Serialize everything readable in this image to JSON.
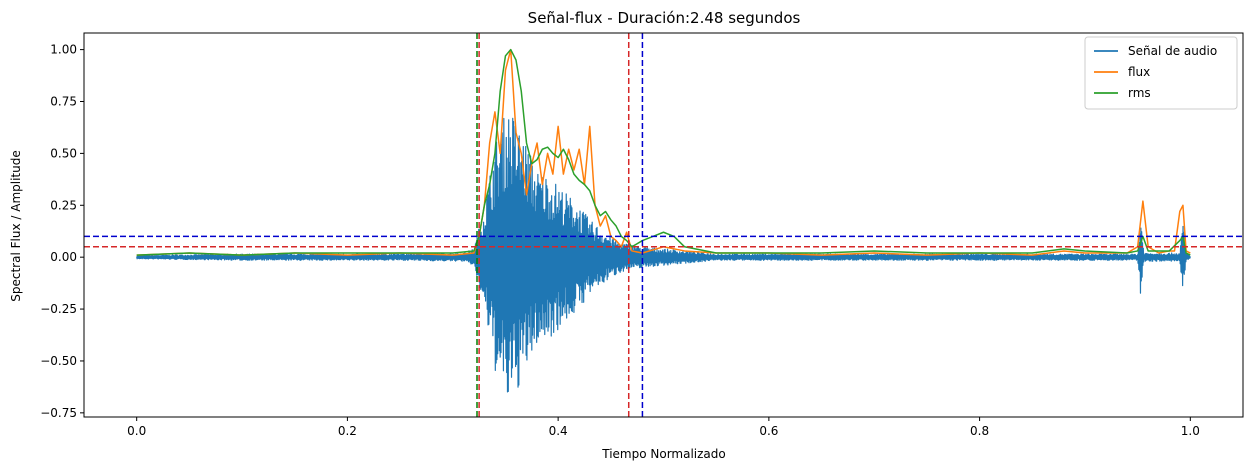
{
  "chart_data": {
    "type": "line",
    "title": "Señal-flux - Duración:2.48 segundos",
    "xlabel": "Tiempo Normalizado",
    "ylabel": "Spectral Flux / Amplitude",
    "xlim": [
      -0.05,
      1.05
    ],
    "ylim": [
      -0.77,
      1.08
    ],
    "xticks": [
      0.0,
      0.2,
      0.4,
      0.6,
      0.8,
      1.0
    ],
    "xtick_labels": [
      "0.0",
      "0.2",
      "0.4",
      "0.6",
      "0.8",
      "1.0"
    ],
    "yticks": [
      -0.75,
      -0.5,
      -0.25,
      0.0,
      0.25,
      0.5,
      0.75,
      1.0
    ],
    "ytick_labels": [
      "−0.75",
      "−0.50",
      "−0.25",
      "0.00",
      "0.25",
      "0.50",
      "0.75",
      "1.00"
    ],
    "grid": false,
    "legend_position": "top-right",
    "series": [
      {
        "name": "Señal de audio",
        "color": "#1f77b4",
        "kind": "oscillating_envelope",
        "envelope": [
          [
            0.0,
            0.008
          ],
          [
            0.1,
            0.015
          ],
          [
            0.25,
            0.015
          ],
          [
            0.31,
            0.02
          ],
          [
            0.32,
            0.04
          ],
          [
            0.33,
            0.25
          ],
          [
            0.34,
            0.55
          ],
          [
            0.345,
            0.62
          ],
          [
            0.35,
            0.7
          ],
          [
            0.355,
            0.72
          ],
          [
            0.36,
            0.66
          ],
          [
            0.37,
            0.55
          ],
          [
            0.38,
            0.42
          ],
          [
            0.39,
            0.4
          ],
          [
            0.4,
            0.35
          ],
          [
            0.41,
            0.3
          ],
          [
            0.42,
            0.25
          ],
          [
            0.43,
            0.18
          ],
          [
            0.44,
            0.14
          ],
          [
            0.45,
            0.1
          ],
          [
            0.46,
            0.07
          ],
          [
            0.47,
            0.06
          ],
          [
            0.48,
            0.05
          ],
          [
            0.5,
            0.04
          ],
          [
            0.52,
            0.03
          ],
          [
            0.55,
            0.015
          ],
          [
            0.95,
            0.015
          ],
          [
            0.953,
            0.2
          ],
          [
            0.956,
            0.02
          ],
          [
            0.99,
            0.02
          ],
          [
            0.993,
            0.18
          ],
          [
            0.996,
            0.02
          ],
          [
            1.0,
            0.005
          ]
        ]
      },
      {
        "name": "flux",
        "color": "#ff7f0e",
        "points": [
          [
            0.0,
            0.01
          ],
          [
            0.05,
            0.02
          ],
          [
            0.1,
            0.01
          ],
          [
            0.15,
            0.02
          ],
          [
            0.2,
            0.01
          ],
          [
            0.25,
            0.02
          ],
          [
            0.3,
            0.01
          ],
          [
            0.32,
            0.02
          ],
          [
            0.325,
            0.1
          ],
          [
            0.33,
            0.25
          ],
          [
            0.335,
            0.55
          ],
          [
            0.34,
            0.7
          ],
          [
            0.345,
            0.5
          ],
          [
            0.35,
            0.9
          ],
          [
            0.355,
            1.0
          ],
          [
            0.36,
            0.6
          ],
          [
            0.365,
            0.5
          ],
          [
            0.37,
            0.3
          ],
          [
            0.375,
            0.45
          ],
          [
            0.38,
            0.55
          ],
          [
            0.385,
            0.35
          ],
          [
            0.39,
            0.5
          ],
          [
            0.395,
            0.4
          ],
          [
            0.4,
            0.63
          ],
          [
            0.405,
            0.4
          ],
          [
            0.41,
            0.52
          ],
          [
            0.415,
            0.42
          ],
          [
            0.42,
            0.52
          ],
          [
            0.425,
            0.35
          ],
          [
            0.43,
            0.63
          ],
          [
            0.435,
            0.25
          ],
          [
            0.44,
            0.15
          ],
          [
            0.445,
            0.2
          ],
          [
            0.45,
            0.1
          ],
          [
            0.455,
            0.08
          ],
          [
            0.46,
            0.05
          ],
          [
            0.465,
            0.12
          ],
          [
            0.47,
            0.03
          ],
          [
            0.48,
            0.02
          ],
          [
            0.5,
            0.05
          ],
          [
            0.52,
            0.03
          ],
          [
            0.55,
            0.02
          ],
          [
            0.6,
            0.02
          ],
          [
            0.65,
            0.01
          ],
          [
            0.7,
            0.02
          ],
          [
            0.75,
            0.01
          ],
          [
            0.8,
            0.02
          ],
          [
            0.85,
            0.01
          ],
          [
            0.88,
            0.03
          ],
          [
            0.9,
            0.02
          ],
          [
            0.94,
            0.02
          ],
          [
            0.95,
            0.05
          ],
          [
            0.955,
            0.27
          ],
          [
            0.96,
            0.05
          ],
          [
            0.97,
            0.02
          ],
          [
            0.98,
            0.03
          ],
          [
            0.985,
            0.03
          ],
          [
            0.99,
            0.22
          ],
          [
            0.993,
            0.25
          ],
          [
            0.996,
            0.03
          ],
          [
            1.0,
            0.02
          ]
        ]
      },
      {
        "name": "rms",
        "color": "#2ca02c",
        "points": [
          [
            0.0,
            0.01
          ],
          [
            0.05,
            0.02
          ],
          [
            0.1,
            0.01
          ],
          [
            0.15,
            0.02
          ],
          [
            0.2,
            0.02
          ],
          [
            0.25,
            0.02
          ],
          [
            0.3,
            0.02
          ],
          [
            0.32,
            0.03
          ],
          [
            0.325,
            0.1
          ],
          [
            0.33,
            0.25
          ],
          [
            0.335,
            0.35
          ],
          [
            0.34,
            0.5
          ],
          [
            0.345,
            0.8
          ],
          [
            0.35,
            0.97
          ],
          [
            0.355,
            1.0
          ],
          [
            0.36,
            0.95
          ],
          [
            0.365,
            0.8
          ],
          [
            0.37,
            0.55
          ],
          [
            0.375,
            0.45
          ],
          [
            0.38,
            0.47
          ],
          [
            0.385,
            0.52
          ],
          [
            0.39,
            0.53
          ],
          [
            0.395,
            0.5
          ],
          [
            0.4,
            0.48
          ],
          [
            0.405,
            0.52
          ],
          [
            0.41,
            0.47
          ],
          [
            0.415,
            0.4
          ],
          [
            0.42,
            0.37
          ],
          [
            0.425,
            0.35
          ],
          [
            0.43,
            0.32
          ],
          [
            0.435,
            0.25
          ],
          [
            0.44,
            0.2
          ],
          [
            0.445,
            0.22
          ],
          [
            0.45,
            0.18
          ],
          [
            0.455,
            0.15
          ],
          [
            0.46,
            0.1
          ],
          [
            0.465,
            0.08
          ],
          [
            0.47,
            0.05
          ],
          [
            0.48,
            0.08
          ],
          [
            0.49,
            0.1
          ],
          [
            0.5,
            0.12
          ],
          [
            0.51,
            0.1
          ],
          [
            0.52,
            0.05
          ],
          [
            0.55,
            0.02
          ],
          [
            0.6,
            0.02
          ],
          [
            0.65,
            0.02
          ],
          [
            0.7,
            0.03
          ],
          [
            0.75,
            0.02
          ],
          [
            0.8,
            0.02
          ],
          [
            0.85,
            0.02
          ],
          [
            0.88,
            0.04
          ],
          [
            0.9,
            0.03
          ],
          [
            0.94,
            0.02
          ],
          [
            0.95,
            0.03
          ],
          [
            0.955,
            0.1
          ],
          [
            0.96,
            0.03
          ],
          [
            0.98,
            0.03
          ],
          [
            0.99,
            0.08
          ],
          [
            0.993,
            0.1
          ],
          [
            0.996,
            0.02
          ],
          [
            1.0,
            0.01
          ]
        ]
      }
    ],
    "reference_lines": [
      {
        "orientation": "vertical",
        "x": 0.323,
        "color": "#008000",
        "style": "dashed"
      },
      {
        "orientation": "vertical",
        "x": 0.325,
        "color": "#d62728",
        "style": "dashed"
      },
      {
        "orientation": "vertical",
        "x": 0.467,
        "color": "#d62728",
        "style": "dashed"
      },
      {
        "orientation": "vertical",
        "x": 0.48,
        "color": "#0000cd",
        "style": "dashed"
      },
      {
        "orientation": "horizontal",
        "y": 0.1,
        "color": "#0000cd",
        "style": "dashed"
      },
      {
        "orientation": "horizontal",
        "y": 0.05,
        "color": "#d62728",
        "style": "dashed"
      }
    ]
  }
}
